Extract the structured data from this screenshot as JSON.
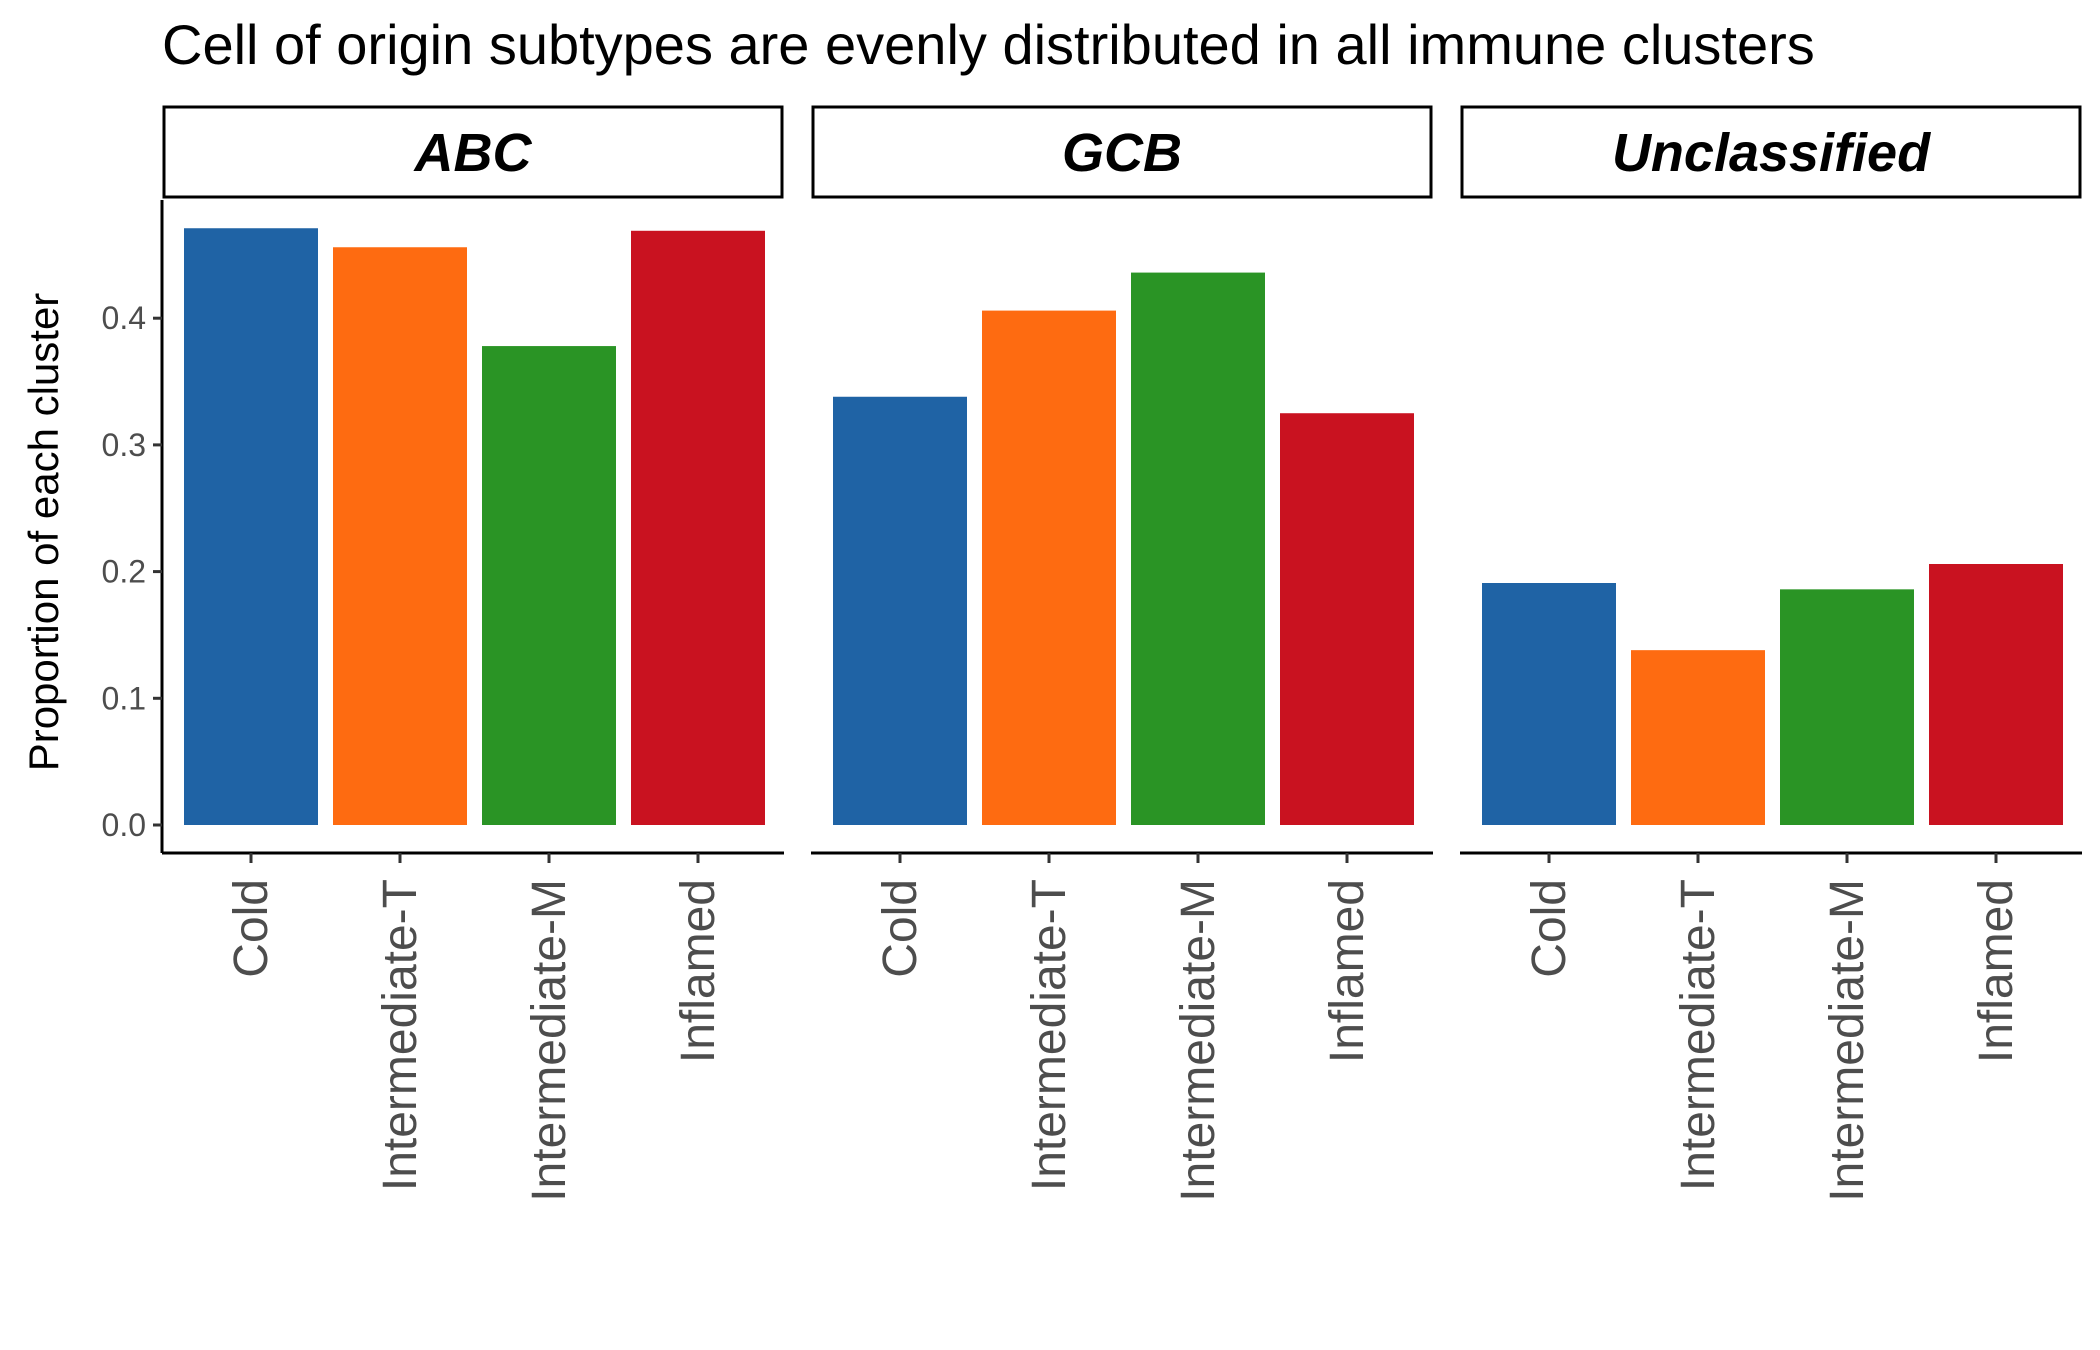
{
  "chart_data": {
    "type": "bar",
    "title": "Cell of origin subtypes are evenly distributed in all immune clusters",
    "ylabel": "Proportion of each cluster",
    "xlabel": "",
    "ylim": [
      0,
      0.49
    ],
    "yticks": [
      "0.0",
      "0.1",
      "0.2",
      "0.3",
      "0.4"
    ],
    "grid": false,
    "legend": "none",
    "categories": [
      "Cold",
      "Intermediate-T",
      "Intermediate-M",
      "Inflamed"
    ],
    "colors": [
      "#1f63a5",
      "#fe6b11",
      "#2a9425",
      "#c91220"
    ],
    "facets": [
      {
        "name": "ABC",
        "values": [
          0.471,
          0.456,
          0.378,
          0.469
        ]
      },
      {
        "name": "GCB",
        "values": [
          0.338,
          0.406,
          0.436,
          0.325
        ]
      },
      {
        "name": "Unclassified",
        "values": [
          0.191,
          0.138,
          0.186,
          0.206
        ]
      }
    ]
  }
}
